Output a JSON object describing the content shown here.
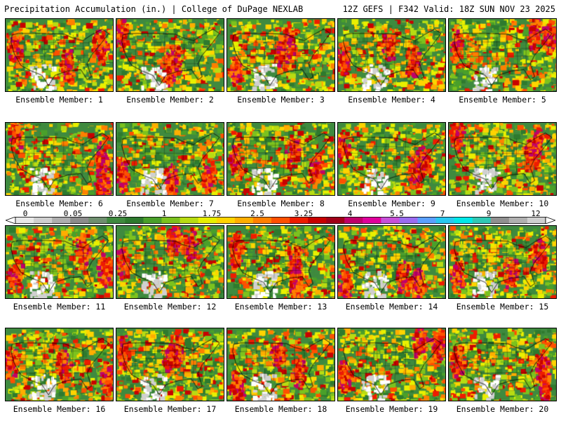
{
  "header": {
    "left": "Precipitation Accumulation (in.) | College of DuPage NEXLAB",
    "right": "12Z GEFS | F342 Valid: 18Z SUN NOV 23 2025"
  },
  "members": [
    {
      "label": "Ensemble Member: 1"
    },
    {
      "label": "Ensemble Member: 2"
    },
    {
      "label": "Ensemble Member: 3"
    },
    {
      "label": "Ensemble Member: 4"
    },
    {
      "label": "Ensemble Member: 5"
    },
    {
      "label": "Ensemble Member: 6"
    },
    {
      "label": "Ensemble Member: 7"
    },
    {
      "label": "Ensemble Member: 8"
    },
    {
      "label": "Ensemble Member: 9"
    },
    {
      "label": "Ensemble Member: 10"
    },
    {
      "label": "Ensemble Member: 11"
    },
    {
      "label": "Ensemble Member: 12"
    },
    {
      "label": "Ensemble Member: 13"
    },
    {
      "label": "Ensemble Member: 14"
    },
    {
      "label": "Ensemble Member: 15"
    },
    {
      "label": "Ensemble Member: 16"
    },
    {
      "label": "Ensemble Member: 17"
    },
    {
      "label": "Ensemble Member: 18"
    },
    {
      "label": "Ensemble Member: 19"
    },
    {
      "label": "Ensemble Member: 20"
    }
  ],
  "colorbar": {
    "labels": [
      "0",
      "0.05",
      "0.25",
      "1",
      "1.75",
      "2.5",
      "3.25",
      "4",
      "5.5",
      "7",
      "9",
      "12"
    ],
    "colors": [
      "#e8e8e8",
      "#cfcfcf",
      "#aeaeae",
      "#8c8c8c",
      "#6f8f6f",
      "#3f8a3f",
      "#2e7a2e",
      "#4aa02a",
      "#7cc21e",
      "#b8dc12",
      "#e8f000",
      "#ffd400",
      "#ffae00",
      "#ff8000",
      "#ff5000",
      "#ee1c00",
      "#c80000",
      "#a00018",
      "#c0006a",
      "#e0009c",
      "#c850d8",
      "#9a6cf0",
      "#5aa0ff",
      "#28c8f0",
      "#00e8e8",
      "#30c8b4",
      "#909090",
      "#b0b0b0",
      "#d0d0d0"
    ]
  },
  "map_palette": [
    "#2e7a2e",
    "#3f8a3f",
    "#4aa02a",
    "#7cc21e",
    "#b8dc12",
    "#e8f000",
    "#ffd400",
    "#ffae00",
    "#ff8000",
    "#ff5000",
    "#ee1c00",
    "#c80000",
    "#c0006a",
    "#9a6cf0",
    "#d0d0d0",
    "#ffffff"
  ]
}
